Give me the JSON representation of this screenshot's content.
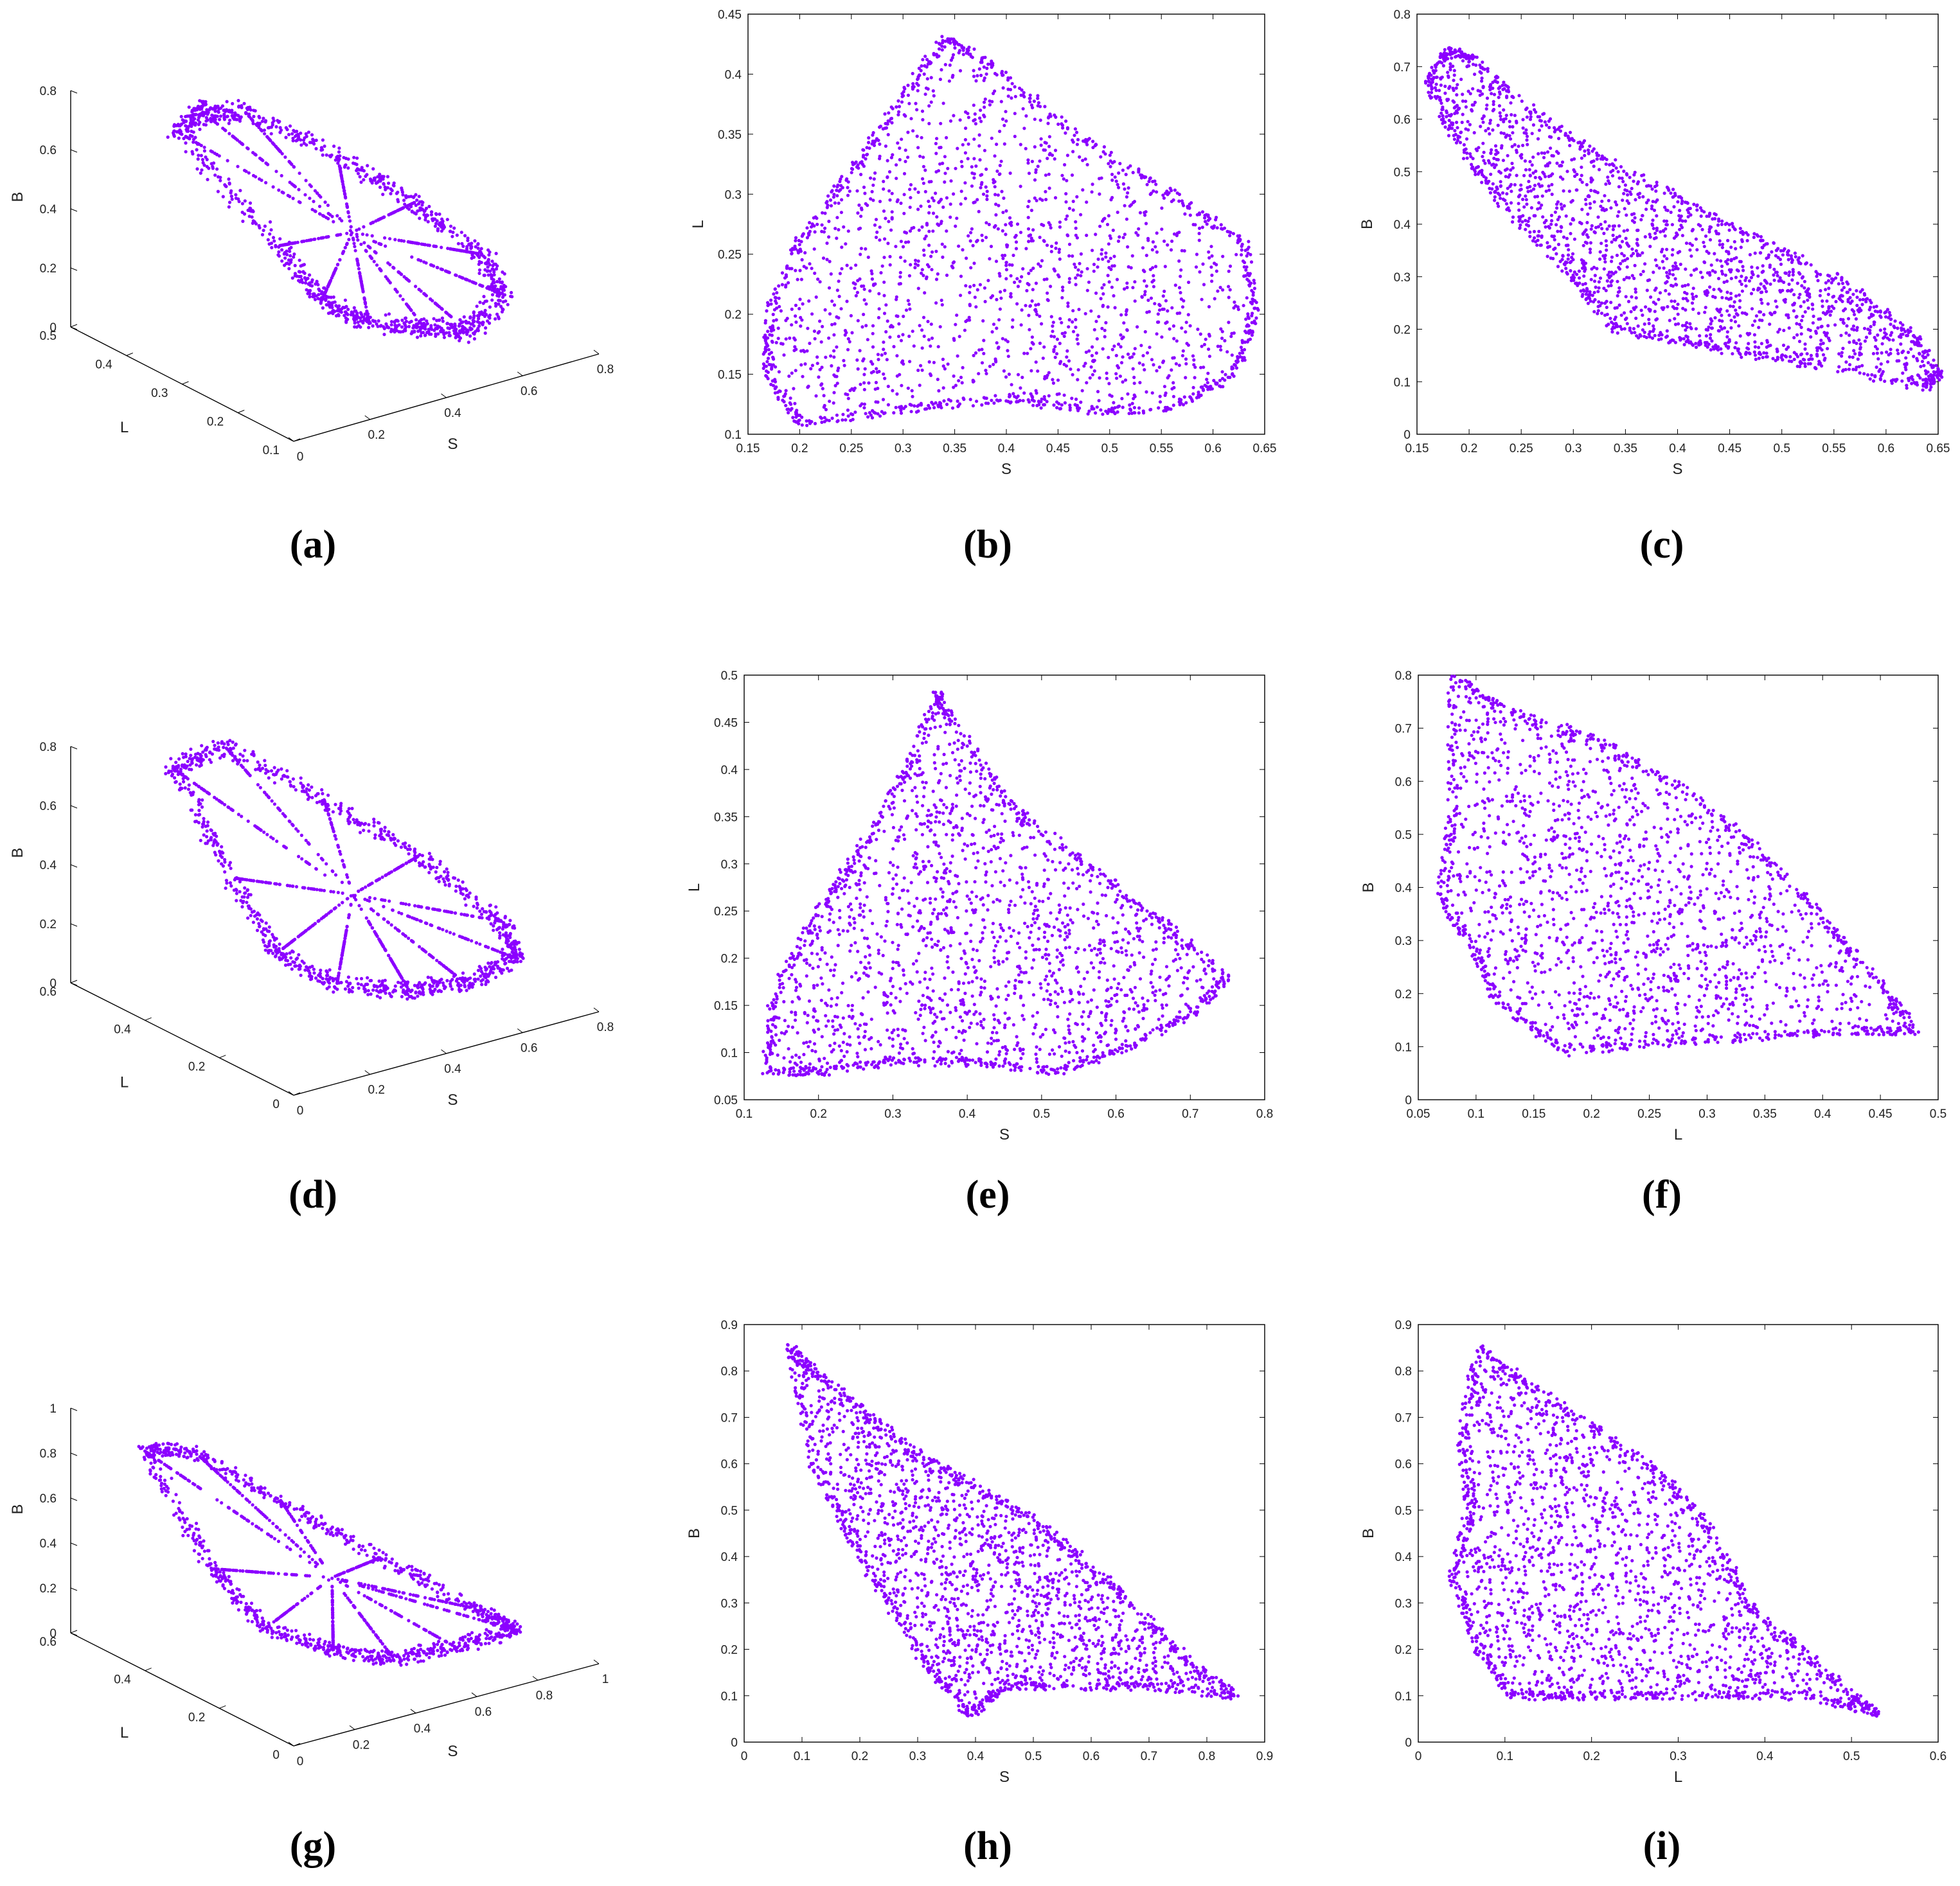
{
  "figure": {
    "accent_color": "#8B00FF",
    "panels": [
      {
        "caption": "(a)"
      },
      {
        "caption": "(b)"
      },
      {
        "caption": "(c)"
      },
      {
        "caption": "(d)"
      },
      {
        "caption": "(e)"
      },
      {
        "caption": "(f)"
      },
      {
        "caption": "(g)"
      },
      {
        "caption": "(h)"
      },
      {
        "caption": "(i)"
      }
    ]
  },
  "chart_data": [
    {
      "id": "a",
      "type": "scatter",
      "projection": "3d",
      "xlabel": "S",
      "ylabel": "L",
      "zlabel": "B",
      "xlim": [
        0,
        0.8
      ],
      "ylim": [
        0.1,
        0.5
      ],
      "zlim": [
        0,
        0.8
      ],
      "xticks": [
        "0",
        "0.2",
        "0.4",
        "0.6",
        "0.8"
      ],
      "yticks": [
        "0.1",
        "0.2",
        "0.3",
        "0.4",
        "0.5"
      ],
      "zticks": [
        "0",
        "0.2",
        "0.4",
        "0.6",
        "0.8"
      ],
      "marker_color": "#8B00FF",
      "cloud_outline": [
        [
          0.17,
          0.42,
          0.67
        ],
        [
          0.24,
          0.43,
          0.71
        ],
        [
          0.34,
          0.42,
          0.68
        ],
        [
          0.48,
          0.35,
          0.55
        ],
        [
          0.58,
          0.28,
          0.42
        ],
        [
          0.64,
          0.2,
          0.3
        ],
        [
          0.62,
          0.15,
          0.22
        ],
        [
          0.5,
          0.13,
          0.16
        ],
        [
          0.4,
          0.14,
          0.2
        ],
        [
          0.3,
          0.17,
          0.22
        ],
        [
          0.22,
          0.2,
          0.3
        ],
        [
          0.18,
          0.25,
          0.45
        ]
      ]
    },
    {
      "id": "b",
      "type": "scatter",
      "xlabel": "S",
      "ylabel": "L",
      "xlim": [
        0.15,
        0.65
      ],
      "ylim": [
        0.1,
        0.45
      ],
      "xticks": [
        "0.15",
        "0.2",
        "0.25",
        "0.3",
        "0.35",
        "0.4",
        "0.45",
        "0.5",
        "0.55",
        "0.6",
        "0.65"
      ],
      "yticks": [
        "0.1",
        "0.15",
        "0.2",
        "0.25",
        "0.3",
        "0.35",
        "0.4",
        "0.45"
      ],
      "marker_color": "#8B00FF",
      "cloud_outline": [
        [
          0.34,
          0.43
        ],
        [
          0.38,
          0.41
        ],
        [
          0.47,
          0.35
        ],
        [
          0.56,
          0.3
        ],
        [
          0.63,
          0.26
        ],
        [
          0.64,
          0.2
        ],
        [
          0.62,
          0.15
        ],
        [
          0.56,
          0.12
        ],
        [
          0.48,
          0.12
        ],
        [
          0.4,
          0.13
        ],
        [
          0.3,
          0.12
        ],
        [
          0.2,
          0.11
        ],
        [
          0.17,
          0.15
        ],
        [
          0.17,
          0.2
        ],
        [
          0.2,
          0.26
        ],
        [
          0.25,
          0.32
        ],
        [
          0.3,
          0.38
        ]
      ]
    },
    {
      "id": "c",
      "type": "scatter",
      "xlabel": "S",
      "ylabel": "B",
      "xlim": [
        0.15,
        0.65
      ],
      "ylim": [
        0,
        0.8
      ],
      "xticks": [
        "0.15",
        "0.2",
        "0.25",
        "0.3",
        "0.35",
        "0.4",
        "0.45",
        "0.5",
        "0.55",
        "0.6",
        "0.65"
      ],
      "yticks": [
        "0",
        "0.1",
        "0.2",
        "0.3",
        "0.4",
        "0.5",
        "0.6",
        "0.7",
        "0.8"
      ],
      "marker_color": "#8B00FF",
      "cloud_outline": [
        [
          0.18,
          0.73
        ],
        [
          0.2,
          0.72
        ],
        [
          0.27,
          0.6
        ],
        [
          0.35,
          0.5
        ],
        [
          0.45,
          0.4
        ],
        [
          0.55,
          0.3
        ],
        [
          0.62,
          0.2
        ],
        [
          0.65,
          0.12
        ],
        [
          0.64,
          0.09
        ],
        [
          0.5,
          0.14
        ],
        [
          0.42,
          0.17
        ],
        [
          0.34,
          0.2
        ],
        [
          0.3,
          0.3
        ],
        [
          0.24,
          0.42
        ],
        [
          0.19,
          0.55
        ],
        [
          0.16,
          0.67
        ]
      ]
    },
    {
      "id": "d",
      "type": "scatter",
      "projection": "3d",
      "xlabel": "S",
      "ylabel": "L",
      "zlabel": "B",
      "xlim": [
        0,
        0.8
      ],
      "ylim": [
        0,
        0.6
      ],
      "zlim": [
        0,
        0.8
      ],
      "xticks": [
        "0",
        "0.2",
        "0.4",
        "0.6",
        "0.8"
      ],
      "yticks": [
        "0",
        "0.2",
        "0.4",
        "0.6"
      ],
      "zticks": [
        "0",
        "0.2",
        "0.4",
        "0.6",
        "0.8"
      ],
      "marker_color": "#8B00FF",
      "cloud_outline": [
        [
          0.15,
          0.48,
          0.75
        ],
        [
          0.28,
          0.47,
          0.78
        ],
        [
          0.45,
          0.38,
          0.6
        ],
        [
          0.6,
          0.28,
          0.42
        ],
        [
          0.72,
          0.18,
          0.22
        ],
        [
          0.7,
          0.12,
          0.14
        ],
        [
          0.55,
          0.1,
          0.12
        ],
        [
          0.4,
          0.1,
          0.15
        ],
        [
          0.25,
          0.14,
          0.2
        ],
        [
          0.15,
          0.2,
          0.3
        ],
        [
          0.13,
          0.3,
          0.5
        ]
      ]
    },
    {
      "id": "e",
      "type": "scatter",
      "xlabel": "S",
      "ylabel": "L",
      "xlim": [
        0.1,
        0.8
      ],
      "ylim": [
        0.05,
        0.5
      ],
      "xticks": [
        "0.1",
        "0.2",
        "0.3",
        "0.4",
        "0.5",
        "0.6",
        "0.7",
        "0.8"
      ],
      "yticks": [
        "0.05",
        "0.1",
        "0.15",
        "0.2",
        "0.25",
        "0.3",
        "0.35",
        "0.4",
        "0.45",
        "0.5"
      ],
      "marker_color": "#8B00FF",
      "cloud_outline": [
        [
          0.36,
          0.48
        ],
        [
          0.38,
          0.45
        ],
        [
          0.46,
          0.36
        ],
        [
          0.56,
          0.3
        ],
        [
          0.66,
          0.24
        ],
        [
          0.75,
          0.18
        ],
        [
          0.7,
          0.14
        ],
        [
          0.6,
          0.1
        ],
        [
          0.52,
          0.08
        ],
        [
          0.42,
          0.09
        ],
        [
          0.3,
          0.09
        ],
        [
          0.2,
          0.08
        ],
        [
          0.13,
          0.08
        ],
        [
          0.14,
          0.16
        ],
        [
          0.2,
          0.25
        ],
        [
          0.26,
          0.32
        ],
        [
          0.32,
          0.4
        ]
      ]
    },
    {
      "id": "f",
      "type": "scatter",
      "xlabel": "L",
      "ylabel": "B",
      "xlim": [
        0.05,
        0.5
      ],
      "ylim": [
        0,
        0.8
      ],
      "xticks": [
        "0.05",
        "0.1",
        "0.15",
        "0.2",
        "0.25",
        "0.3",
        "0.35",
        "0.4",
        "0.45",
        "0.5"
      ],
      "yticks": [
        "0",
        "0.1",
        "0.2",
        "0.3",
        "0.4",
        "0.5",
        "0.6",
        "0.7",
        "0.8"
      ],
      "marker_color": "#8B00FF",
      "cloud_outline": [
        [
          0.08,
          0.8
        ],
        [
          0.12,
          0.74
        ],
        [
          0.2,
          0.68
        ],
        [
          0.27,
          0.6
        ],
        [
          0.34,
          0.48
        ],
        [
          0.4,
          0.34
        ],
        [
          0.45,
          0.22
        ],
        [
          0.48,
          0.13
        ],
        [
          0.43,
          0.13
        ],
        [
          0.35,
          0.12
        ],
        [
          0.27,
          0.11
        ],
        [
          0.18,
          0.09
        ],
        [
          0.12,
          0.18
        ],
        [
          0.1,
          0.28
        ],
        [
          0.07,
          0.38
        ],
        [
          0.08,
          0.55
        ]
      ]
    },
    {
      "id": "g",
      "type": "scatter",
      "projection": "3d",
      "xlabel": "S",
      "ylabel": "L",
      "zlabel": "B",
      "xlim": [
        0,
        1
      ],
      "ylim": [
        0,
        0.6
      ],
      "zlim": [
        0,
        1
      ],
      "xticks": [
        "0",
        "0.2",
        "0.4",
        "0.6",
        "0.8",
        "1"
      ],
      "yticks": [
        "0",
        "0.2",
        "0.4",
        "0.6"
      ],
      "zticks": [
        "0",
        "0.2",
        "0.4",
        "0.6",
        "0.8",
        "1"
      ],
      "marker_color": "#8B00FF",
      "cloud_outline": [
        [
          0.12,
          0.5,
          0.85
        ],
        [
          0.25,
          0.47,
          0.82
        ],
        [
          0.42,
          0.38,
          0.62
        ],
        [
          0.6,
          0.26,
          0.4
        ],
        [
          0.78,
          0.15,
          0.2
        ],
        [
          0.85,
          0.1,
          0.12
        ],
        [
          0.65,
          0.1,
          0.12
        ],
        [
          0.45,
          0.1,
          0.14
        ],
        [
          0.3,
          0.14,
          0.2
        ],
        [
          0.15,
          0.2,
          0.3
        ],
        [
          0.1,
          0.3,
          0.5
        ]
      ]
    },
    {
      "id": "h",
      "type": "scatter",
      "xlabel": "S",
      "ylabel": "B",
      "xlim": [
        0,
        0.9
      ],
      "ylim": [
        0,
        0.9
      ],
      "xticks": [
        "0",
        "0.1",
        "0.2",
        "0.3",
        "0.4",
        "0.5",
        "0.6",
        "0.7",
        "0.8",
        "0.9"
      ],
      "yticks": [
        "0",
        "0.1",
        "0.2",
        "0.3",
        "0.4",
        "0.5",
        "0.6",
        "0.7",
        "0.8",
        "0.9"
      ],
      "marker_color": "#8B00FF",
      "cloud_outline": [
        [
          0.08,
          0.85
        ],
        [
          0.12,
          0.8
        ],
        [
          0.2,
          0.72
        ],
        [
          0.3,
          0.62
        ],
        [
          0.4,
          0.55
        ],
        [
          0.5,
          0.48
        ],
        [
          0.6,
          0.38
        ],
        [
          0.7,
          0.26
        ],
        [
          0.78,
          0.16
        ],
        [
          0.85,
          0.1
        ],
        [
          0.7,
          0.12
        ],
        [
          0.55,
          0.12
        ],
        [
          0.45,
          0.12
        ],
        [
          0.39,
          0.06
        ],
        [
          0.32,
          0.16
        ],
        [
          0.25,
          0.3
        ],
        [
          0.18,
          0.45
        ],
        [
          0.12,
          0.6
        ]
      ]
    },
    {
      "id": "i",
      "type": "scatter",
      "xlabel": "L",
      "ylabel": "B",
      "xlim": [
        0,
        0.6
      ],
      "ylim": [
        0,
        0.9
      ],
      "xticks": [
        "0",
        "0.1",
        "0.2",
        "0.3",
        "0.4",
        "0.5",
        "0.6"
      ],
      "yticks": [
        "0",
        "0.1",
        "0.2",
        "0.3",
        "0.4",
        "0.5",
        "0.6",
        "0.7",
        "0.8",
        "0.9"
      ],
      "marker_color": "#8B00FF",
      "cloud_outline": [
        [
          0.07,
          0.85
        ],
        [
          0.12,
          0.78
        ],
        [
          0.2,
          0.68
        ],
        [
          0.28,
          0.58
        ],
        [
          0.34,
          0.45
        ],
        [
          0.38,
          0.3
        ],
        [
          0.44,
          0.2
        ],
        [
          0.5,
          0.1
        ],
        [
          0.53,
          0.06
        ],
        [
          0.45,
          0.1
        ],
        [
          0.35,
          0.1
        ],
        [
          0.25,
          0.1
        ],
        [
          0.17,
          0.1
        ],
        [
          0.11,
          0.1
        ],
        [
          0.07,
          0.2
        ],
        [
          0.04,
          0.35
        ],
        [
          0.06,
          0.5
        ],
        [
          0.05,
          0.65
        ]
      ]
    }
  ]
}
